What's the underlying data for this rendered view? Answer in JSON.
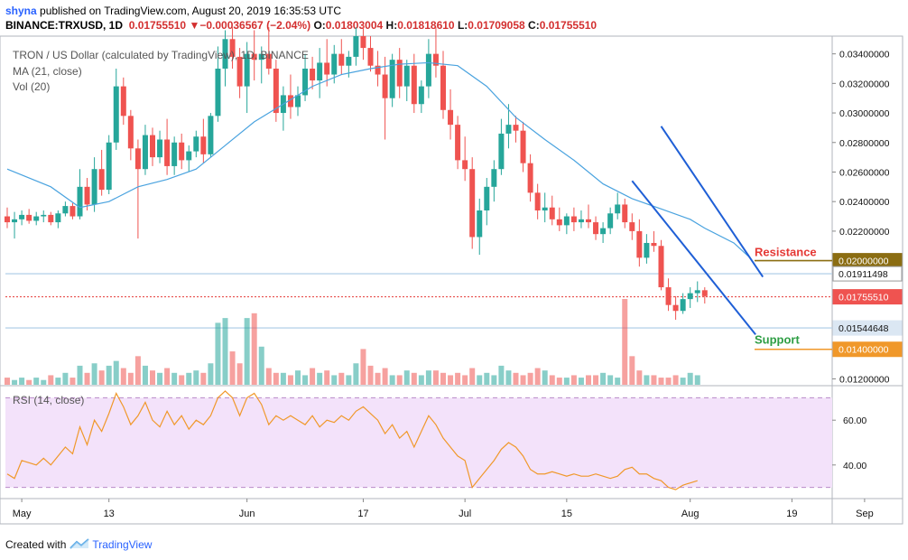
{
  "header": {
    "line1_user": "shyna",
    "line1_text": " published on TradingView.com, August 20, 2019 16:35:53 UTC",
    "symbol": "BINANCE:TRXUSD, 1D",
    "last": "0.01755510",
    "change": "−0.00036567 (−2.04%)",
    "o_label": "O:",
    "o_val": "0.01803004",
    "h_label": "H:",
    "h_val": "0.01818610",
    "l_label": "L:",
    "l_val": "0.01709058",
    "c_label": "C:",
    "c_val": "0.01755510"
  },
  "legend": {
    "title": "TRON / US Dollar (calculated by TradingView), 1D, BINANCE",
    "ma": "MA (21, close)",
    "vol": "Vol (20)",
    "rsi": "RSI (14, close)"
  },
  "annotations": {
    "resistance": "Resistance",
    "support": "Support"
  },
  "price_tags": [
    {
      "text": "0.02000000",
      "bg": "#8b6d12",
      "fg": "#ffffff"
    },
    {
      "text": "0.01911498",
      "bg": "#ffffff",
      "fg": "#111111"
    },
    {
      "text": "0.01755510",
      "bg": "#ef5350",
      "fg": "#ffffff"
    },
    {
      "text": "0.01544648",
      "bg": "#dbe7f3",
      "fg": "#111111"
    },
    {
      "text": "0.01400000",
      "bg": "#f0982a",
      "fg": "#ffffff"
    }
  ],
  "footer": {
    "created": "Created with",
    "brand": "TradingView"
  },
  "colors": {
    "up": "#26a69a",
    "down": "#ef5350",
    "ma": "#4aa3df",
    "channel": "#1f5fd6",
    "resistance": "#8b6d12",
    "support": "#f0982a",
    "resistance_text": "#e53935",
    "support_text": "#2e9e44",
    "rsi_line": "#f0982a",
    "rsi_band": "#f3e2fa"
  },
  "chart_data": [
    {
      "type": "candlestick",
      "title": "TRON / US Dollar (calculated by TradingView), 1D, BINANCE",
      "x_ticks": [
        "May",
        "13",
        "Jun",
        "17",
        "Jul",
        "15",
        "Aug",
        "19",
        "Sep"
      ],
      "y_ticks": [
        "0.03400000",
        "0.03200000",
        "0.03000000",
        "0.02800000",
        "0.02600000",
        "0.02400000",
        "0.02200000",
        "0.01200000"
      ],
      "ylim": [
        0.0116,
        0.0352
      ],
      "start_date": "2019-04-29",
      "candles": [
        [
          0.023,
          0.0236,
          0.0222,
          0.0226
        ],
        [
          0.0226,
          0.0233,
          0.0215,
          0.0228
        ],
        [
          0.0228,
          0.0234,
          0.0224,
          0.0231
        ],
        [
          0.0231,
          0.0235,
          0.0225,
          0.0227
        ],
        [
          0.0227,
          0.0233,
          0.0224,
          0.023
        ],
        [
          0.023,
          0.0234,
          0.0226,
          0.0231
        ],
        [
          0.0231,
          0.0233,
          0.0224,
          0.0226
        ],
        [
          0.0226,
          0.0234,
          0.0222,
          0.0232
        ],
        [
          0.0232,
          0.024,
          0.023,
          0.0237
        ],
        [
          0.0237,
          0.0239,
          0.0228,
          0.023
        ],
        [
          0.023,
          0.0262,
          0.0228,
          0.025
        ],
        [
          0.025,
          0.0256,
          0.0234,
          0.0238
        ],
        [
          0.0238,
          0.027,
          0.0233,
          0.0262
        ],
        [
          0.0262,
          0.0275,
          0.0244,
          0.0248
        ],
        [
          0.0248,
          0.0285,
          0.0245,
          0.028
        ],
        [
          0.028,
          0.033,
          0.0275,
          0.0318
        ],
        [
          0.0318,
          0.0324,
          0.0292,
          0.0298
        ],
        [
          0.0298,
          0.0302,
          0.0268,
          0.0276
        ],
        [
          0.0276,
          0.0282,
          0.0215,
          0.0262
        ],
        [
          0.0262,
          0.0292,
          0.0258,
          0.0285
        ],
        [
          0.0285,
          0.029,
          0.0264,
          0.027
        ],
        [
          0.027,
          0.0288,
          0.0266,
          0.0282
        ],
        [
          0.0282,
          0.0296,
          0.0258,
          0.0264
        ],
        [
          0.0264,
          0.0284,
          0.0258,
          0.028
        ],
        [
          0.028,
          0.0286,
          0.0262,
          0.0268
        ],
        [
          0.0268,
          0.0278,
          0.026,
          0.0274
        ],
        [
          0.0274,
          0.0288,
          0.027,
          0.0284
        ],
        [
          0.0284,
          0.0296,
          0.0266,
          0.0272
        ],
        [
          0.0272,
          0.03,
          0.027,
          0.0298
        ],
        [
          0.0298,
          0.0345,
          0.0294,
          0.033
        ],
        [
          0.033,
          0.0356,
          0.0318,
          0.035
        ],
        [
          0.035,
          0.0358,
          0.033,
          0.0338
        ],
        [
          0.0338,
          0.0344,
          0.031,
          0.0318
        ],
        [
          0.0318,
          0.0348,
          0.03,
          0.034
        ],
        [
          0.034,
          0.0356,
          0.0322,
          0.0336
        ],
        [
          0.0336,
          0.0345,
          0.032,
          0.034
        ],
        [
          0.034,
          0.0358,
          0.0326,
          0.033
        ],
        [
          0.033,
          0.0336,
          0.0294,
          0.03
        ],
        [
          0.03,
          0.0318,
          0.0288,
          0.0312
        ],
        [
          0.0312,
          0.0326,
          0.0296,
          0.0304
        ],
        [
          0.0304,
          0.0318,
          0.0298,
          0.0312
        ],
        [
          0.0312,
          0.034,
          0.0308,
          0.033
        ],
        [
          0.033,
          0.0338,
          0.0316,
          0.0322
        ],
        [
          0.0322,
          0.0344,
          0.031,
          0.0334
        ],
        [
          0.0334,
          0.035,
          0.0318,
          0.0326
        ],
        [
          0.0326,
          0.0346,
          0.032,
          0.034
        ],
        [
          0.034,
          0.035,
          0.0326,
          0.0332
        ],
        [
          0.0332,
          0.0342,
          0.0324,
          0.0338
        ],
        [
          0.0338,
          0.0358,
          0.0332,
          0.0352
        ],
        [
          0.0352,
          0.036,
          0.0336,
          0.0344
        ],
        [
          0.0344,
          0.0352,
          0.0328,
          0.0332
        ],
        [
          0.0332,
          0.0342,
          0.0318,
          0.0326
        ],
        [
          0.0326,
          0.0338,
          0.0282,
          0.031
        ],
        [
          0.031,
          0.034,
          0.0304,
          0.0336
        ],
        [
          0.0336,
          0.0344,
          0.031,
          0.0318
        ],
        [
          0.0318,
          0.0336,
          0.0308,
          0.0332
        ],
        [
          0.0332,
          0.034,
          0.03,
          0.0306
        ],
        [
          0.0306,
          0.0322,
          0.03,
          0.0318
        ],
        [
          0.0318,
          0.035,
          0.031,
          0.034
        ],
        [
          0.034,
          0.0358,
          0.0324,
          0.0332
        ],
        [
          0.0332,
          0.0342,
          0.0296,
          0.0302
        ],
        [
          0.0302,
          0.0316,
          0.0282,
          0.0292
        ],
        [
          0.0292,
          0.0298,
          0.0262,
          0.0268
        ],
        [
          0.0268,
          0.0284,
          0.0254,
          0.0262
        ],
        [
          0.0262,
          0.027,
          0.0208,
          0.0216
        ],
        [
          0.0216,
          0.0242,
          0.0204,
          0.0234
        ],
        [
          0.0234,
          0.0256,
          0.0224,
          0.025
        ],
        [
          0.025,
          0.0268,
          0.024,
          0.0262
        ],
        [
          0.0262,
          0.0296,
          0.0258,
          0.0286
        ],
        [
          0.0286,
          0.0306,
          0.0276,
          0.0292
        ],
        [
          0.0292,
          0.0298,
          0.028,
          0.0288
        ],
        [
          0.0288,
          0.0294,
          0.026,
          0.0266
        ],
        [
          0.0266,
          0.0272,
          0.024,
          0.0246
        ],
        [
          0.0246,
          0.0252,
          0.0228,
          0.0234
        ],
        [
          0.0234,
          0.0246,
          0.0226,
          0.0236
        ],
        [
          0.0236,
          0.0244,
          0.0224,
          0.0228
        ],
        [
          0.0228,
          0.0236,
          0.022,
          0.0224
        ],
        [
          0.0224,
          0.0232,
          0.0218,
          0.023
        ],
        [
          0.023,
          0.0236,
          0.022,
          0.0226
        ],
        [
          0.0226,
          0.0234,
          0.0222,
          0.0228
        ],
        [
          0.0228,
          0.0238,
          0.0222,
          0.0226
        ],
        [
          0.0226,
          0.023,
          0.0214,
          0.0218
        ],
        [
          0.0218,
          0.0226,
          0.0212,
          0.0222
        ],
        [
          0.0222,
          0.0236,
          0.0218,
          0.0232
        ],
        [
          0.0232,
          0.0246,
          0.0228,
          0.0238
        ],
        [
          0.0238,
          0.0242,
          0.0222,
          0.0226
        ],
        [
          0.0226,
          0.0232,
          0.0214,
          0.022
        ],
        [
          0.022,
          0.0228,
          0.0196,
          0.0202
        ],
        [
          0.0202,
          0.0218,
          0.0198,
          0.0212
        ],
        [
          0.0212,
          0.022,
          0.0206,
          0.021
        ],
        [
          0.021,
          0.0214,
          0.018,
          0.0182
        ],
        [
          0.0182,
          0.0188,
          0.0166,
          0.017
        ],
        [
          0.017,
          0.0176,
          0.016,
          0.0166
        ],
        [
          0.0166,
          0.0178,
          0.0164,
          0.0174
        ],
        [
          0.0174,
          0.0182,
          0.0168,
          0.0178
        ],
        [
          0.0178,
          0.0186,
          0.0172,
          0.018
        ],
        [
          0.018,
          0.0182,
          0.0171,
          0.0176
        ]
      ],
      "volume": [
        3,
        2,
        3,
        2,
        3,
        2,
        4,
        3,
        5,
        3,
        8,
        5,
        9,
        6,
        8,
        10,
        7,
        5,
        12,
        8,
        6,
        5,
        7,
        5,
        4,
        5,
        6,
        5,
        9,
        26,
        28,
        14,
        9,
        28,
        30,
        16,
        7,
        5,
        5,
        4,
        6,
        4,
        7,
        5,
        6,
        4,
        5,
        4,
        9,
        15,
        8,
        5,
        7,
        4,
        4,
        6,
        5,
        4,
        6,
        6,
        5,
        4,
        5,
        4,
        7,
        4,
        5,
        4,
        8,
        6,
        5,
        4,
        5,
        7,
        6,
        4,
        3,
        3,
        4,
        3,
        4,
        4,
        5,
        4,
        3,
        36,
        12,
        6,
        4,
        4,
        3,
        3,
        4,
        3,
        5,
        4
      ],
      "ma_21": [
        [
          0,
          0.0262
        ],
        [
          6,
          0.025
        ],
        [
          10,
          0.0236
        ],
        [
          14,
          0.024
        ],
        [
          18,
          0.025
        ],
        [
          22,
          0.0255
        ],
        [
          26,
          0.0262
        ],
        [
          30,
          0.0278
        ],
        [
          34,
          0.0294
        ],
        [
          38,
          0.0306
        ],
        [
          42,
          0.0318
        ],
        [
          46,
          0.0326
        ],
        [
          50,
          0.033
        ],
        [
          54,
          0.0333
        ],
        [
          58,
          0.0334
        ],
        [
          62,
          0.0332
        ],
        [
          66,
          0.0318
        ],
        [
          70,
          0.0297
        ],
        [
          74,
          0.0282
        ],
        [
          78,
          0.0268
        ],
        [
          82,
          0.0252
        ],
        [
          86,
          0.0242
        ],
        [
          90,
          0.0235
        ],
        [
          94,
          0.0228
        ],
        [
          96,
          0.0222
        ],
        [
          100,
          0.0212
        ],
        [
          102,
          0.0203
        ]
      ],
      "channel_lines": [
        [
          [
            90,
            0.0291
          ],
          [
            104,
            0.0189
          ]
        ],
        [
          [
            86,
            0.0254
          ],
          [
            103,
            0.015
          ]
        ]
      ],
      "horizontal_levels": [
        {
          "price": 0.02,
          "role": "resistance"
        },
        {
          "price": 0.01911498,
          "role": "marker"
        },
        {
          "price": 0.0175551,
          "role": "last"
        },
        {
          "price": 0.01544648,
          "role": "marker"
        },
        {
          "price": 0.014,
          "role": "support"
        }
      ]
    },
    {
      "type": "line",
      "title": "RSI (14, close)",
      "y_ticks": [
        "60.00",
        "40.00"
      ],
      "ylim": [
        25,
        75
      ],
      "band": [
        30,
        70
      ],
      "values": [
        36,
        34,
        42,
        41,
        40,
        43,
        40,
        44,
        48,
        45,
        57,
        49,
        60,
        55,
        63,
        72,
        66,
        58,
        62,
        68,
        60,
        57,
        64,
        58,
        62,
        56,
        60,
        58,
        62,
        70,
        73,
        70,
        62,
        70,
        72,
        67,
        58,
        62,
        60,
        62,
        60,
        58,
        62,
        57,
        60,
        59,
        62,
        60,
        64,
        66,
        63,
        60,
        54,
        58,
        52,
        55,
        48,
        55,
        62,
        58,
        52,
        48,
        44,
        42,
        30,
        34,
        38,
        42,
        47,
        50,
        48,
        44,
        38,
        36,
        36,
        37,
        36,
        35,
        36,
        35,
        35,
        36,
        35,
        34,
        35,
        38,
        39,
        36,
        36,
        34,
        33,
        30,
        29,
        31,
        32,
        33
      ]
    }
  ]
}
